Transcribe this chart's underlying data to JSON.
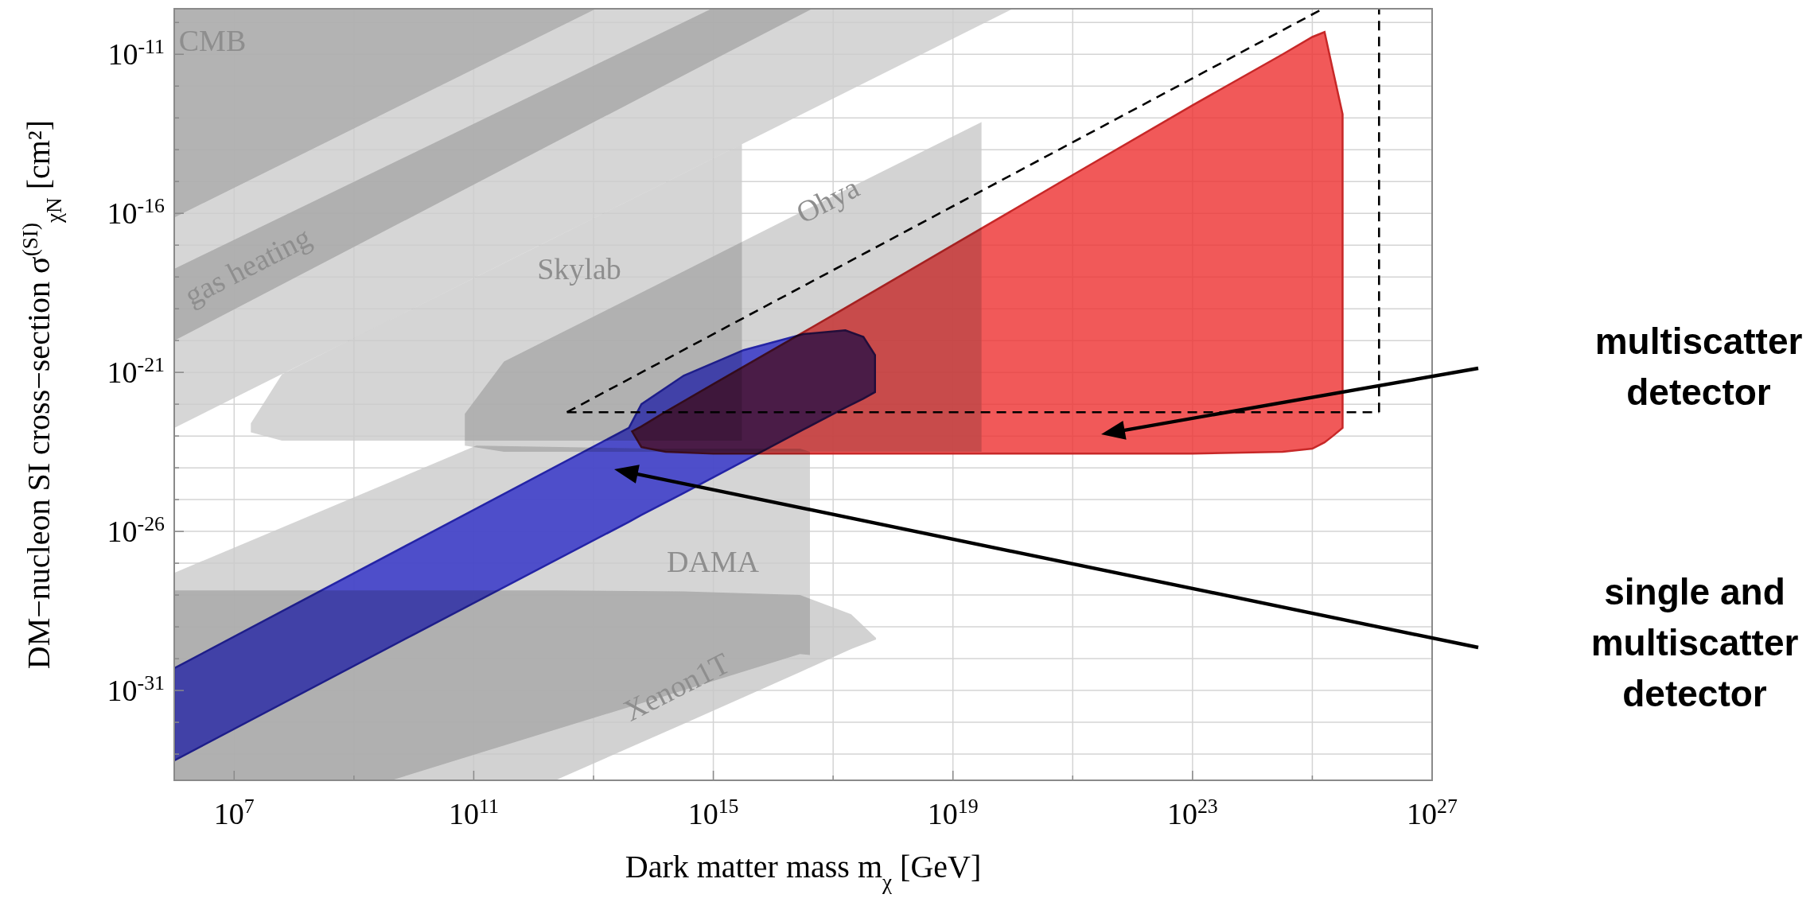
{
  "chart_data": {
    "type": "area",
    "xlabel": "Dark matter mass m$_{χ}$ [GeV]",
    "ylabel": "DM−nucleon SI cross−section σ$^{(SI)}$$_{χN}$ [cm²]",
    "log": "xy",
    "grid": true,
    "xlim": [
      1000000.0,
      1e+27
    ],
    "ylim": [
      1.5e-34,
      2.7e-10
    ],
    "xticks": [
      {
        "value": 10000000.0,
        "label": "10$^{7}$"
      },
      {
        "value": 1000000000.0,
        "label": null
      },
      {
        "value": 100000000000.0,
        "label": "10$^{11}$"
      },
      {
        "value": 10000000000000.0,
        "label": null
      },
      {
        "value": 1000000000000000.0,
        "label": "10$^{15}$"
      },
      {
        "value": 1e+17,
        "label": null
      },
      {
        "value": 1e+19,
        "label": "10$^{19}$"
      },
      {
        "value": 1e+21,
        "label": null
      },
      {
        "value": 1e+23,
        "label": "10$^{23}$"
      },
      {
        "value": 1e+25,
        "label": null
      },
      {
        "value": 1e+27,
        "label": "10$^{27}$"
      }
    ],
    "yticks": [
      {
        "value": 1e-33,
        "label": null
      },
      {
        "value": 1e-32,
        "label": null
      },
      {
        "value": 1e-31,
        "label": "10$^{-31}$"
      },
      {
        "value": 1e-30,
        "label": null
      },
      {
        "value": 1e-29,
        "label": null
      },
      {
        "value": 1e-28,
        "label": null
      },
      {
        "value": 1e-27,
        "label": null
      },
      {
        "value": 1e-26,
        "label": "10$^{-26}$"
      },
      {
        "value": 1e-25,
        "label": null
      },
      {
        "value": 1e-24,
        "label": null
      },
      {
        "value": 1e-23,
        "label": null
      },
      {
        "value": 1e-22,
        "label": null
      },
      {
        "value": 1e-21,
        "label": "10$^{-21}$"
      },
      {
        "value": 1e-20,
        "label": null
      },
      {
        "value": 1e-19,
        "label": null
      },
      {
        "value": 1e-18,
        "label": null
      },
      {
        "value": 1e-17,
        "label": null
      },
      {
        "value": 1e-16,
        "label": "10$^{-16}$"
      },
      {
        "value": 1e-15,
        "label": null
      },
      {
        "value": 1e-14,
        "label": null
      },
      {
        "value": 1e-13,
        "label": null
      },
      {
        "value": 1e-12,
        "label": null
      },
      {
        "value": 1e-11,
        "label": "10$^{-11}$"
      },
      {
        "value": 1e-10,
        "label": null
      }
    ],
    "series": [
      {
        "color": "#cccccc",
        "x": [
          1000000.0,
          1e+20
        ],
        "values": [
          null,
          null
        ],
        "upper": [
          2.7e-10,
          2.7e-10
        ],
        "lower": [
          1.8e-23,
          2.7e-10
        ]
      },
      {
        "color": "#c9c9c9",
        "x": [
          1000000.0,
          11000000000000.0
        ],
        "values": [
          null,
          null
        ],
        "upper": [
          2.7e-10,
          2.7e-10
        ],
        "lower": [
          7.4e-17,
          2.7e-10
        ]
      },
      {
        "color": "#c6c6c6",
        "x": [
          1000000.0,
          930000000000000.0,
          4.5e+16
        ],
        "values": [
          null,
          null,
          null
        ],
        "upper": [
          1.8e-18,
          2.7e-10,
          2.7e-10
        ],
        "lower": [
          1e-20,
          6.2e-12,
          2.7e-10
        ]
      },
      {
        "color": "#cbcbcb",
        "x": [
          19000000.0,
          63000000.0,
          1000000000.0,
          1000000000000.0,
          3000000000000000.0
        ],
        "values": [
          null,
          null,
          null,
          null,
          null
        ],
        "upper": [
          2.5e-23,
          8.7e-22,
          1.2e-20,
          7.9e-18,
          1.5e-14
        ],
        "lower": [
          1.3e-23,
          7.1e-24,
          7.1e-24,
          7.1e-24,
          7.1e-24
        ]
      },
      {
        "color": "#c8c8c8",
        "x": [
          71000000000.0,
          320000000000.0,
          100000000000000.0,
          1e+17,
          3e+19
        ],
        "values": [
          null,
          null,
          null,
          null,
          null
        ],
        "upper": [
          5e-23,
          2.2e-21,
          5e-19,
          3.5e-16,
          7.4e-14
        ],
        "lower": [
          5e-24,
          3.2e-24,
          3.2e-24,
          3.2e-24,
          3.2e-24
        ]
      },
      {
        "color": "#cacaca",
        "x": [
          1000000.0,
          4200000000.0,
          110000000000.0,
          100000000000000.0,
          2.8e+16,
          4.1e+16
        ],
        "values": [
          null,
          null,
          null,
          null,
          null,
          null
        ],
        "upper": [
          5e-28,
          3.7e-25,
          5e-24,
          4e-24,
          4e-24,
          3.2e-24
        ],
        "lower": [
          1.5e-34,
          1.5e-34,
          1e-33,
          5.2e-32,
          1.4e-30,
          1.3e-30
        ]
      },
      {
        "color": "#c7c7c7",
        "x": [
          1000000.0,
          2300000000000.0,
          320000000000000.0,
          2.8e+16,
          2e+17,
          5.2e+17
        ],
        "values": [
          null,
          null,
          null,
          null,
          null,
          null
        ],
        "upper": [
          1.4e-28,
          1.4e-28,
          1.3e-28,
          1e-28,
          2.5e-29,
          4.5e-30
        ],
        "lower": [
          1.5e-34,
          1.5e-34,
          8.9e-33,
          3.8e-31,
          2e-30,
          4e-30
        ]
      },
      {
        "color": "#3333ee",
        "x": [
          1000000.0,
          10000000000.0,
          39000000000000.0,
          63000000000000.0,
          320000000000000.0,
          3200000000000000.0,
          3.2e+16,
          1.6e+17,
          3.2e+17,
          5e+17
        ],
        "values": [
          null,
          null,
          null,
          null,
          null,
          null,
          null,
          null,
          null,
          null
        ],
        "upper": [
          5e-31,
          4.8e-27,
          1.8e-23,
          1e-22,
          7.9e-22,
          5e-21,
          1.6e-20,
          2.1e-20,
          1.3e-20,
          3.5e-21
        ],
        "lower": [
          6.3e-34,
          5.8e-30,
          2e-26,
          3.3e-26,
          1.6e-25,
          1.6e-24,
          1.6e-23,
          7.8e-23,
          1.5e-22,
          2.4e-22
        ]
      },
      {
        "color": "#ee3030",
        "x": [
          44000000000000.0,
          63000000000000.0,
          160000000000000.0,
          1000000000000000.0,
          1e+17,
          1e+19,
          1e+21,
          1e+23,
          3.2e+24,
          1e+25,
          1.6e+25,
          2.2e+25,
          3.2e+25
        ],
        "values": [
          null,
          null,
          null,
          null,
          null,
          null,
          null,
          null,
          null,
          null,
          null,
          null,
          null
        ],
        "upper": [
          1.4e-23,
          2e-23,
          5.8e-23,
          4.3e-22,
          6.3e-20,
          1e-17,
          1.6e-15,
          2.5e-13,
          1e-11,
          3.5e-11,
          5e-11,
          3.2e-12,
          1.3e-13
        ],
        "lower": [
          1.4e-23,
          4.5e-24,
          3.2e-24,
          2.8e-24,
          2.8e-24,
          2.8e-24,
          2.8e-24,
          2.8e-24,
          3.2e-24,
          4e-24,
          6.3e-24,
          1e-23,
          1.8e-23
        ]
      },
      {
        "type": "line",
        "line_style": "dashed",
        "color": "#000000",
        "x": [
          3600000000000.0,
          1.5e+25
        ],
        "values": [
          5.6e-23,
          2.7e-10
        ]
      },
      {
        "type": "line",
        "line_style": "dashed",
        "color": "#000000",
        "x": [
          3600000000000.0,
          1.3e+26
        ],
        "values": [
          5.6e-23,
          5.6e-23
        ]
      },
      {
        "type": "line",
        "line_style": "dashed",
        "color": "#000000",
        "x": [
          1.3e+26,
          1.3e+26
        ],
        "values": [
          5.6e-23,
          2.7e-10
        ]
      }
    ],
    "annotations": [
      "CMB",
      "gas heating",
      "Skylab",
      "Ohya",
      "DAMA",
      "Xenon1T",
      "multiscatter detector",
      "single and multiscatter detector"
    ]
  }
}
